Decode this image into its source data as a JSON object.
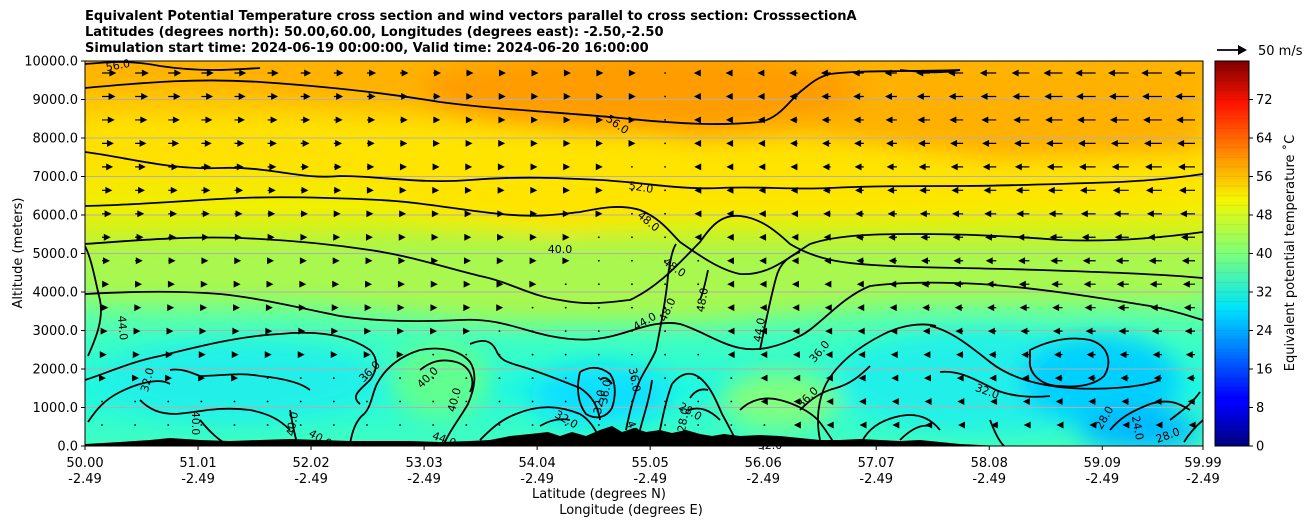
{
  "title_lines": [
    "Equivalent Potential Temperature cross section and wind vectors parallel to cross section: CrosssectionA",
    "Latitudes (degrees north): 50.00,60.00, Longitudes (degrees east): -2.50,-2.50",
    "Simulation start time: 2024-06-19 00:00:00, Valid time: 2024-06-20 16:00:00"
  ],
  "chart_data": {
    "type": "heatmap",
    "title": "Equivalent Potential Temperature cross section and wind vectors parallel to cross section: CrosssectionA",
    "xlabel_line1": "Latitude (degrees N)",
    "xlabel_line2": "Longitude (degrees E)",
    "ylabel": "Altitude (meters)",
    "ylim": [
      0,
      10000
    ],
    "y_ticks": [
      "0.0",
      "1000.0",
      "2000.0",
      "3000.0",
      "4000.0",
      "5000.0",
      "6000.0",
      "7000.0",
      "8000.0",
      "9000.0",
      "10000.0"
    ],
    "x_ticks": [
      {
        "lat": "50.00",
        "lon": "-2.49"
      },
      {
        "lat": "51.01",
        "lon": "-2.49"
      },
      {
        "lat": "52.02",
        "lon": "-2.49"
      },
      {
        "lat": "53.03",
        "lon": "-2.49"
      },
      {
        "lat": "54.04",
        "lon": "-2.49"
      },
      {
        "lat": "55.05",
        "lon": "-2.49"
      },
      {
        "lat": "56.06",
        "lon": "-2.49"
      },
      {
        "lat": "57.07",
        "lon": "-2.49"
      },
      {
        "lat": "58.08",
        "lon": "-2.49"
      },
      {
        "lat": "59.09",
        "lon": "-2.49"
      },
      {
        "lat": "59.99",
        "lon": "-2.49"
      }
    ],
    "grid": "horizontal",
    "colorbar": {
      "label": "Equivalent potential temperature ˚C",
      "min": 0,
      "max": 80,
      "ticks": [
        "0",
        "8",
        "16",
        "24",
        "32",
        "40",
        "48",
        "56",
        "64",
        "72"
      ],
      "colormap": "jet"
    },
    "wind_key_label": "50 m/s",
    "contour_labels": [
      "56.0",
      "56.0",
      "52.0",
      "48.0",
      "48.0",
      "48.0",
      "48.0",
      "44.0",
      "44.0",
      "44.0",
      "40.0",
      "40.0",
      "40.0",
      "40.0",
      "40.0",
      "40.0",
      "36.0",
      "36.0",
      "36.0",
      "36.0",
      "36.0",
      "32.0",
      "32.0",
      "32.0",
      "32.0",
      "28.0",
      "28.0",
      "24.0",
      "28.0",
      "28.0",
      "40",
      "44.0",
      "32.0"
    ]
  }
}
